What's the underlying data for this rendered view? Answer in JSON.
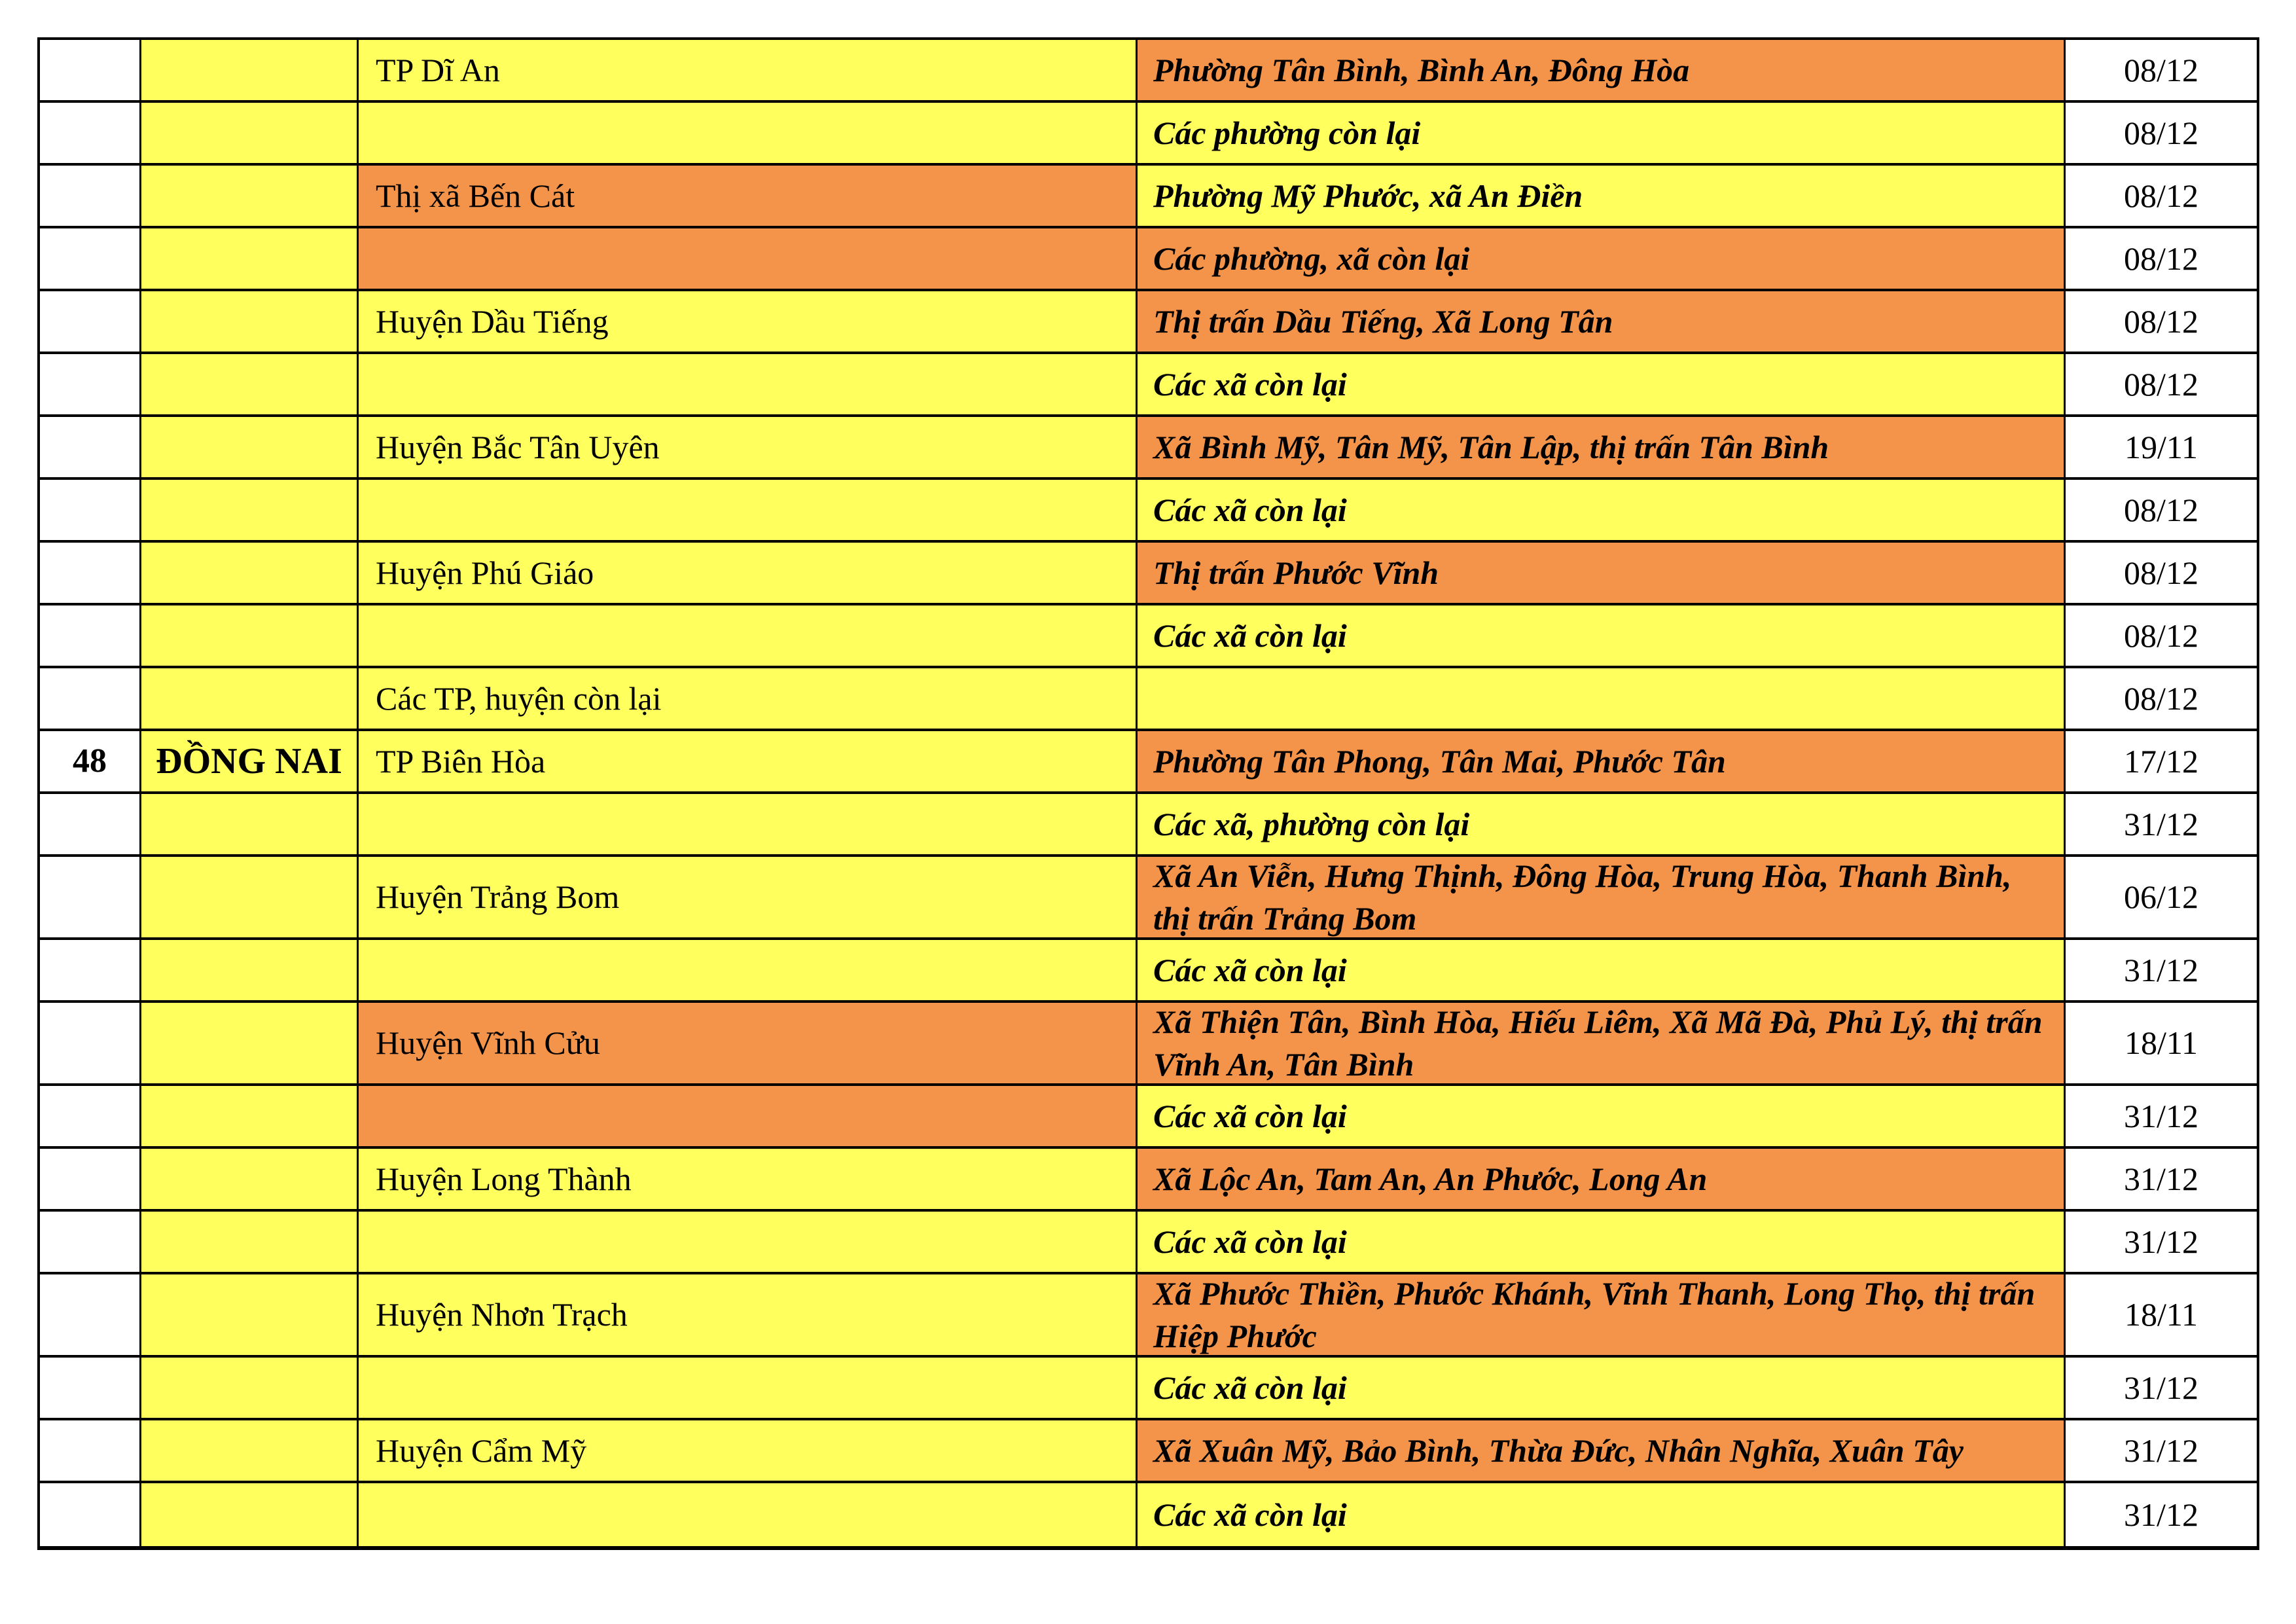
{
  "colors": {
    "yellow": "#FFFF5E",
    "orange": "#F4944A",
    "grid": "#000000",
    "text": "#000000",
    "page": "#FFFFFF"
  },
  "rows": [
    {
      "stt": "",
      "province": "",
      "district": "TP Dĩ An",
      "district_bg": "yellow",
      "wards": "Phường Tân Bình, Bình An, Đông Hòa",
      "wards_bg": "orange",
      "date": "08/12"
    },
    {
      "stt": "",
      "province": "",
      "district": "",
      "district_bg": "yellow",
      "wards": "Các phường còn lại",
      "wards_bg": "yellow",
      "date": "08/12"
    },
    {
      "stt": "",
      "province": "",
      "district": "Thị xã Bến Cát",
      "district_bg": "orange",
      "wards": "Phường Mỹ Phước, xã An Điền",
      "wards_bg": "yellow",
      "date": "08/12"
    },
    {
      "stt": "",
      "province": "",
      "district": "",
      "district_bg": "orange",
      "wards": "Các phường, xã còn lại",
      "wards_bg": "orange",
      "date": "08/12"
    },
    {
      "stt": "",
      "province": "",
      "district": "Huyện Dầu Tiếng",
      "district_bg": "yellow",
      "wards": "Thị trấn Dầu Tiếng, Xã Long Tân",
      "wards_bg": "orange",
      "date": "08/12"
    },
    {
      "stt": "",
      "province": "",
      "district": "",
      "district_bg": "yellow",
      "wards": "Các xã còn lại",
      "wards_bg": "yellow",
      "date": "08/12"
    },
    {
      "stt": "",
      "province": "",
      "district": "Huyện Bắc Tân Uyên",
      "district_bg": "yellow",
      "wards": "Xã Bình Mỹ, Tân Mỹ, Tân Lập, thị trấn Tân Bình",
      "wards_bg": "orange",
      "date": "19/11"
    },
    {
      "stt": "",
      "province": "",
      "district": "",
      "district_bg": "yellow",
      "wards": "Các xã còn lại",
      "wards_bg": "yellow",
      "date": "08/12"
    },
    {
      "stt": "",
      "province": "",
      "district": "Huyện Phú Giáo",
      "district_bg": "yellow",
      "wards": "Thị trấn Phước Vĩnh",
      "wards_bg": "orange",
      "date": "08/12"
    },
    {
      "stt": "",
      "province": "",
      "district": "",
      "district_bg": "yellow",
      "wards": "Các xã còn lại",
      "wards_bg": "yellow",
      "date": "08/12"
    },
    {
      "stt": "",
      "province": "",
      "district": "Các TP, huyện còn lại",
      "district_bg": "yellow",
      "wards": "",
      "wards_bg": "yellow",
      "date": "08/12"
    },
    {
      "stt": "48",
      "province": "ĐỒNG NAI",
      "district": "TP Biên Hòa",
      "district_bg": "yellow",
      "wards": "Phường Tân Phong, Tân Mai, Phước Tân",
      "wards_bg": "orange",
      "date": "17/12"
    },
    {
      "stt": "",
      "province": "",
      "district": "",
      "district_bg": "yellow",
      "wards": "Các xã, phường còn lại",
      "wards_bg": "yellow",
      "date": "31/12"
    },
    {
      "stt": "",
      "province": "",
      "district": "Huyện Trảng Bom",
      "district_bg": "yellow",
      "wards": "Xã An Viễn, Hưng Thịnh, Đông Hòa, Trung Hòa, Thanh Bình,\nthị trấn Trảng Bom",
      "wards_bg": "orange",
      "date": "06/12"
    },
    {
      "stt": "",
      "province": "",
      "district": "",
      "district_bg": "yellow",
      "wards": "Các xã còn lại",
      "wards_bg": "yellow",
      "date": "31/12"
    },
    {
      "stt": "",
      "province": "",
      "district": "Huyện Vĩnh Cửu",
      "district_bg": "orange",
      "wards": "Xã Thiện Tân, Bình Hòa, Hiếu Liêm, Xã Mã Đà, Phủ Lý, thị trấn\nVĩnh An, Tân Bình",
      "wards_bg": "orange",
      "date": "18/11"
    },
    {
      "stt": "",
      "province": "",
      "district": "",
      "district_bg": "orange",
      "wards": "Các xã còn lại",
      "wards_bg": "yellow",
      "date": "31/12"
    },
    {
      "stt": "",
      "province": "",
      "district": "Huyện Long Thành",
      "district_bg": "yellow",
      "wards": "Xã Lộc An, Tam An, An Phước, Long An",
      "wards_bg": "orange",
      "date": "31/12"
    },
    {
      "stt": "",
      "province": "",
      "district": "",
      "district_bg": "yellow",
      "wards": "Các xã còn lại",
      "wards_bg": "yellow",
      "date": "31/12"
    },
    {
      "stt": "",
      "province": "",
      "district": "Huyện Nhơn Trạch",
      "district_bg": "yellow",
      "wards": "Xã Phước Thiền, Phước Khánh, Vĩnh Thanh, Long Thọ, thị trấn\nHiệp Phước",
      "wards_bg": "orange",
      "date": "18/11"
    },
    {
      "stt": "",
      "province": "",
      "district": "",
      "district_bg": "yellow",
      "wards": "Các xã còn lại",
      "wards_bg": "yellow",
      "date": "31/12"
    },
    {
      "stt": "",
      "province": "",
      "district": "Huyện Cẩm Mỹ",
      "district_bg": "yellow",
      "wards": "Xã Xuân Mỹ, Bảo Bình, Thừa Đức, Nhân Nghĩa, Xuân Tây",
      "wards_bg": "orange",
      "date": "31/12"
    },
    {
      "stt": "",
      "province": "",
      "district": "",
      "district_bg": "yellow",
      "wards": "Các xã còn lại",
      "wards_bg": "yellow",
      "date": "31/12"
    }
  ]
}
